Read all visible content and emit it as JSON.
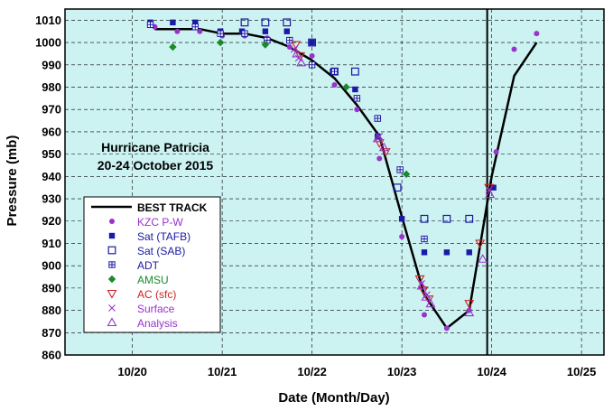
{
  "chart_data": {
    "type": "scatter",
    "title": "",
    "annotation": [
      "Hurricane Patricia",
      "20-24 October 2015"
    ],
    "xlabel": "Date (Month/Day)",
    "ylabel": "Pressure (mb)",
    "x_ticks": [
      "10/20",
      "10/21",
      "10/22",
      "10/23",
      "10/24",
      "10/25"
    ],
    "y_ticks": [
      860,
      870,
      880,
      890,
      900,
      910,
      920,
      930,
      940,
      950,
      960,
      970,
      980,
      990,
      1000,
      1010
    ],
    "x_units": "days after 10/20 00 UTC",
    "xlim": [
      -0.75,
      5.25
    ],
    "ylim": [
      860,
      1015
    ],
    "grid": true,
    "background": "#ccf2f2",
    "vertical_marker_x": 3.95,
    "legend_position": "left",
    "series": [
      {
        "name": "BEST TRACK",
        "marker": "line",
        "color": "#000000",
        "points": [
          [
            0.25,
            1006
          ],
          [
            0.5,
            1006
          ],
          [
            0.75,
            1006
          ],
          [
            1.0,
            1004
          ],
          [
            1.25,
            1004
          ],
          [
            1.5,
            1002
          ],
          [
            1.75,
            998
          ],
          [
            2.0,
            992
          ],
          [
            2.25,
            984
          ],
          [
            2.5,
            972
          ],
          [
            2.75,
            958
          ],
          [
            3.0,
            922
          ],
          [
            3.25,
            887
          ],
          [
            3.5,
            872
          ],
          [
            3.75,
            880
          ],
          [
            4.0,
            940
          ],
          [
            4.25,
            985
          ],
          [
            4.5,
            1000
          ]
        ]
      },
      {
        "name": "KZC P-W",
        "marker": "circle",
        "color": "#9933cc",
        "points": [
          [
            0.25,
            1007
          ],
          [
            0.5,
            1005
          ],
          [
            0.75,
            1005
          ],
          [
            1.0,
            1003
          ],
          [
            1.25,
            1003
          ],
          [
            1.5,
            1002
          ],
          [
            1.75,
            998
          ],
          [
            2.0,
            994
          ],
          [
            2.25,
            981
          ],
          [
            2.5,
            970
          ],
          [
            2.75,
            948
          ],
          [
            3.0,
            913
          ],
          [
            3.25,
            878
          ],
          [
            3.5,
            872
          ],
          [
            3.75,
            880
          ],
          [
            4.05,
            951
          ],
          [
            4.25,
            997
          ],
          [
            4.5,
            1004
          ]
        ]
      },
      {
        "name": "Sat (TAFB)",
        "marker": "square-filled",
        "color": "#1a1aa6",
        "points": [
          [
            0.2,
            1009
          ],
          [
            0.45,
            1009
          ],
          [
            0.7,
            1009
          ],
          [
            0.98,
            1005
          ],
          [
            1.22,
            1005
          ],
          [
            1.48,
            1005
          ],
          [
            1.72,
            1005
          ],
          [
            2.0,
            1000
          ],
          [
            2.23,
            987
          ],
          [
            2.48,
            979
          ],
          [
            2.73,
            958
          ],
          [
            3.0,
            921
          ],
          [
            3.25,
            906
          ],
          [
            3.5,
            906
          ],
          [
            3.75,
            906
          ],
          [
            4.02,
            935
          ]
        ]
      },
      {
        "name": "Sat (SAB)",
        "marker": "square-open",
        "color": "#1a1aa6",
        "points": [
          [
            1.25,
            1009
          ],
          [
            1.48,
            1009
          ],
          [
            1.72,
            1009
          ],
          [
            2.0,
            1000
          ],
          [
            2.25,
            987
          ],
          [
            2.48,
            987
          ],
          [
            2.95,
            935
          ],
          [
            3.25,
            921
          ],
          [
            3.5,
            921
          ],
          [
            3.75,
            921
          ]
        ]
      },
      {
        "name": "ADT",
        "marker": "square-hatched",
        "color": "#1a1aa6",
        "points": [
          [
            0.2,
            1008
          ],
          [
            0.7,
            1007
          ],
          [
            0.98,
            1004
          ],
          [
            1.25,
            1004
          ],
          [
            1.5,
            1001
          ],
          [
            1.75,
            1001
          ],
          [
            2.0,
            990
          ],
          [
            2.25,
            987
          ],
          [
            2.5,
            975
          ],
          [
            2.73,
            966
          ],
          [
            2.98,
            943
          ],
          [
            3.25,
            912
          ]
        ]
      },
      {
        "name": "AMSU",
        "marker": "diamond",
        "color": "#1a8a2a",
        "points": [
          [
            0.45,
            998
          ],
          [
            0.98,
            1000
          ],
          [
            1.48,
            999
          ],
          [
            2.38,
            980
          ],
          [
            3.05,
            941
          ]
        ]
      },
      {
        "name": "AC (sfc)",
        "marker": "triangle-down-open",
        "color": "#cc2222",
        "points": [
          [
            1.82,
            999
          ],
          [
            1.87,
            994
          ],
          [
            2.75,
            955
          ],
          [
            2.82,
            951
          ],
          [
            3.2,
            894
          ],
          [
            3.24,
            889
          ],
          [
            3.3,
            885
          ],
          [
            3.75,
            883
          ],
          [
            3.87,
            910
          ],
          [
            3.97,
            935
          ]
        ]
      },
      {
        "name": "Surface",
        "marker": "x",
        "color": "#9933cc",
        "points": [
          [
            1.8,
            997
          ],
          [
            1.85,
            993
          ],
          [
            2.75,
            958
          ],
          [
            3.22,
            892
          ],
          [
            3.28,
            887
          ],
          [
            3.97,
            934
          ]
        ]
      },
      {
        "name": "Analysis",
        "marker": "triangle-up-open",
        "color": "#9933cc",
        "points": [
          [
            1.83,
            995
          ],
          [
            1.88,
            991
          ],
          [
            2.73,
            957
          ],
          [
            2.8,
            953
          ],
          [
            3.22,
            891
          ],
          [
            3.27,
            886
          ],
          [
            3.32,
            883
          ],
          [
            3.75,
            879
          ],
          [
            3.9,
            903
          ],
          [
            3.98,
            932
          ]
        ]
      }
    ]
  }
}
